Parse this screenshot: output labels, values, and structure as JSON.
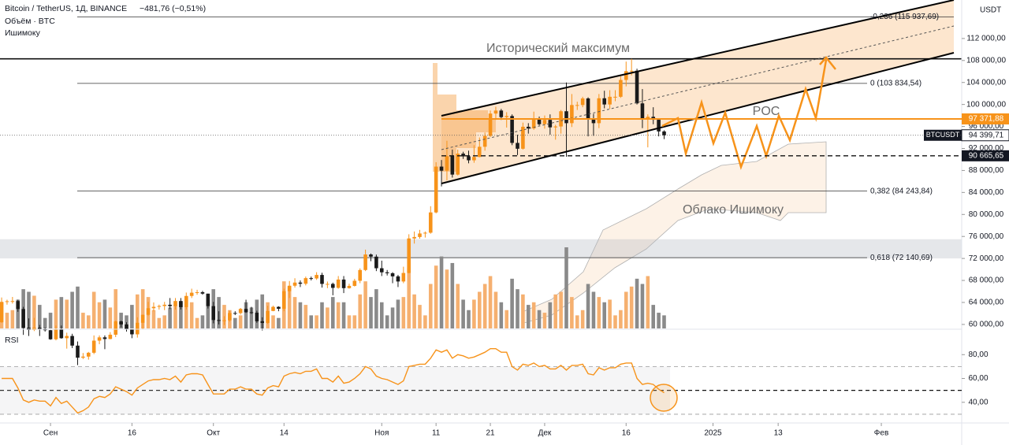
{
  "header": {
    "symbol": "Bitcoin / TetherUS, 1Д, BINANCE",
    "change": "−481,76 (−0,51%)",
    "volume": "Объём · BTC",
    "ichimoku": "Ишимоку"
  },
  "chart_data": {
    "type": "candlestick",
    "currency": "USDT",
    "up_color": "#f7931a",
    "down_color": "#1a1a1a",
    "volume_up_color": "#f5b070",
    "volume_down_color": "#8a8a8a",
    "xlim": [
      -0.3,
      176.8
    ],
    "xticks": [
      {
        "value": 9,
        "label": "Сен"
      },
      {
        "value": 24,
        "label": "16"
      },
      {
        "value": 39,
        "label": "Окт"
      },
      {
        "value": 52,
        "label": "14"
      },
      {
        "value": 70,
        "label": "Ноя"
      },
      {
        "value": 80,
        "label": "11"
      },
      {
        "value": 90,
        "label": "21"
      },
      {
        "value": 100,
        "label": "Дек"
      },
      {
        "value": 115,
        "label": "16"
      },
      {
        "value": 131,
        "label": "2025"
      },
      {
        "value": 143,
        "label": "13"
      },
      {
        "value": 162,
        "label": "Фев"
      }
    ],
    "ylim": [
      59200,
      119000
    ],
    "yticks": [
      {
        "value": 60000,
        "label": "60 000,00"
      },
      {
        "value": 64000,
        "label": "64 000,00"
      },
      {
        "value": 68000,
        "label": "68 000,00"
      },
      {
        "value": 72000,
        "label": "72 000,00"
      },
      {
        "value": 76000,
        "label": "76 000,00"
      },
      {
        "value": 80000,
        "label": "80 000,00"
      },
      {
        "value": 84000,
        "label": "84 000,00"
      },
      {
        "value": 88000,
        "label": "88 000,00"
      },
      {
        "value": 92000,
        "label": "92 000,00"
      },
      {
        "value": 96000,
        "label": "96 000,00"
      },
      {
        "value": 100000,
        "label": "100 000,00"
      },
      {
        "value": 104000,
        "label": "104 000,00"
      },
      {
        "value": 108000,
        "label": "108 000,00"
      },
      {
        "value": 112000,
        "label": "112 000,00"
      }
    ],
    "x": [
      0,
      1,
      2,
      3,
      4,
      5,
      6,
      7,
      8,
      9,
      10,
      11,
      12,
      13,
      14,
      15,
      16,
      17,
      18,
      19,
      20,
      21,
      22,
      23,
      24,
      25,
      26,
      27,
      28,
      29,
      30,
      31,
      32,
      33,
      34,
      35,
      36,
      37,
      38,
      39,
      40,
      41,
      42,
      43,
      44,
      45,
      46,
      47,
      48,
      49,
      50,
      51,
      52,
      53,
      54,
      55,
      56,
      57,
      58,
      59,
      60,
      61,
      62,
      63,
      64,
      65,
      66,
      67,
      68,
      69,
      70,
      71,
      72,
      73,
      74,
      75,
      76,
      77,
      78,
      79,
      80,
      81,
      82,
      83,
      84,
      85,
      86,
      87,
      88,
      89,
      90,
      91,
      92,
      93,
      94,
      95,
      96,
      97,
      98,
      99,
      100,
      101,
      102,
      103,
      104,
      105,
      106,
      107,
      108,
      109,
      110,
      111,
      112,
      113,
      114,
      115,
      116,
      117,
      118,
      119,
      120,
      121,
      122
    ],
    "open": [
      60400,
      64100,
      64220,
      64250,
      62800,
      59400,
      59000,
      59400,
      59100,
      58950,
      57300,
      59100,
      57500,
      57900,
      56150,
      53950,
      54150,
      54850,
      57050,
      57650,
      57350,
      58130,
      60550,
      60000,
      59150,
      58200,
      60300,
      61750,
      62950,
      63200,
      63350,
      63580,
      63330,
      64260,
      63150,
      65180,
      65770,
      65860,
      65600,
      63330,
      60800,
      60650,
      60750,
      62080,
      62060,
      62820,
      62220,
      62130,
      60580,
      60270,
      62450,
      63200,
      62850,
      66050,
      67040,
      67610,
      67400,
      68420,
      68360,
      69000,
      67370,
      67370,
      66650,
      68160,
      66600,
      67010,
      67940,
      69900,
      72720,
      72330,
      70220,
      69480,
      69310,
      68740,
      67810,
      69360,
      75640,
      75900,
      76540,
      76680,
      80370,
      88700,
      87960,
      90600,
      87250,
      91060,
      90560,
      89850,
      90460,
      92310,
      94290,
      98350,
      98900,
      97700,
      97900,
      93010,
      91950,
      95950,
      95640,
      97460,
      96410,
      97200,
      95840,
      96000,
      98770,
      96600,
      99900,
      99900,
      101100,
      97360,
      96600,
      101130,
      100000,
      101400,
      101400,
      104460,
      106060,
      106140,
      100200,
      97460,
      97760,
      97220,
      95100
    ],
    "high": [
      64900,
      64500,
      65000,
      64500,
      63200,
      61100,
      61200,
      59900,
      59400,
      59000,
      59800,
      59800,
      58500,
      58300,
      56900,
      54800,
      55000,
      58000,
      58000,
      58000,
      58600,
      60700,
      60700,
      60400,
      59200,
      61300,
      61800,
      64100,
      64000,
      63600,
      64100,
      64800,
      64800,
      64800,
      65800,
      66500,
      66300,
      66100,
      65600,
      64100,
      62400,
      61500,
      62500,
      62400,
      63000,
      64500,
      63200,
      62500,
      61300,
      63400,
      63400,
      63300,
      66500,
      67900,
      68400,
      68000,
      68700,
      68700,
      69500,
      69400,
      67800,
      67600,
      68800,
      68800,
      67400,
      68300,
      70200,
      73600,
      72900,
      72700,
      71600,
      69900,
      69500,
      69000,
      70500,
      76400,
      76900,
      77200,
      76900,
      81500,
      89500,
      89900,
      93400,
      91800,
      91800,
      91400,
      91600,
      92600,
      94000,
      94900,
      98900,
      99600,
      99200,
      98600,
      98200,
      94500,
      96700,
      96600,
      98700,
      97800,
      98000,
      98200,
      96300,
      99000,
      104000,
      101900,
      100500,
      101400,
      101300,
      98300,
      101900,
      102500,
      102600,
      102600,
      105100,
      107800,
      108300,
      106500,
      102800,
      98200,
      99500,
      97300,
      95300
    ],
    "low": [
      60300,
      63600,
      63800,
      62300,
      58100,
      57900,
      58800,
      57900,
      58700,
      57200,
      57100,
      57400,
      55600,
      55700,
      52600,
      53700,
      53600,
      54600,
      56400,
      55500,
      57300,
      57700,
      59500,
      58700,
      57500,
      57600,
      59200,
      61600,
      62400,
      62700,
      62600,
      62800,
      62700,
      62700,
      62700,
      64800,
      65400,
      65400,
      62900,
      60200,
      60000,
      59900,
      60500,
      61700,
      61800,
      62100,
      61900,
      60300,
      58900,
      60100,
      62400,
      62400,
      62400,
      64800,
      66700,
      66800,
      67100,
      68000,
      68100,
      66700,
      66600,
      65300,
      66500,
      65700,
      66500,
      66900,
      67500,
      69700,
      71500,
      69700,
      68800,
      68900,
      67500,
      66800,
      67500,
      69300,
      74700,
      75600,
      75800,
      76500,
      80200,
      85100,
      86200,
      86700,
      87100,
      90100,
      89300,
      89400,
      90400,
      91600,
      94100,
      97200,
      97200,
      95800,
      92600,
      90800,
      91800,
      94700,
      95400,
      96200,
      95600,
      94500,
      93600,
      94700,
      90500,
      95900,
      99000,
      99500,
      94200,
      94300,
      95700,
      99300,
      99200,
      100600,
      101200,
      103300,
      105300,
      100000,
      95700,
      92200,
      96400,
      94200,
      93700
    ],
    "close": [
      64100,
      64220,
      64250,
      62800,
      59400,
      59000,
      59400,
      59100,
      58950,
      57300,
      59100,
      57500,
      57900,
      56150,
      53950,
      54150,
      54850,
      57050,
      57650,
      57350,
      58130,
      60550,
      60000,
      59150,
      58200,
      60300,
      61750,
      62950,
      63200,
      63350,
      63580,
      63330,
      64260,
      63150,
      65180,
      65770,
      65860,
      65600,
      63330,
      60800,
      60650,
      60750,
      62080,
      62060,
      62820,
      62220,
      62130,
      60580,
      60270,
      62450,
      63200,
      62850,
      66050,
      67040,
      67610,
      67400,
      68420,
      68360,
      69000,
      67370,
      67370,
      66650,
      68160,
      66600,
      67010,
      67940,
      69900,
      72720,
      72330,
      70220,
      69480,
      69310,
      68740,
      67810,
      69360,
      75640,
      75900,
      76540,
      76680,
      80370,
      88700,
      87960,
      90600,
      87250,
      91060,
      90560,
      89850,
      90460,
      92310,
      94290,
      98350,
      98900,
      97700,
      97900,
      93010,
      91950,
      95950,
      95640,
      97460,
      96410,
      97200,
      95840,
      96000,
      98770,
      96600,
      99900,
      99900,
      101100,
      97360,
      96600,
      101130,
      100000,
      101400,
      101400,
      104460,
      106060,
      106140,
      100200,
      97460,
      97760,
      97220,
      95100,
      94400
    ],
    "volume": [
      20,
      12,
      14,
      22,
      30,
      28,
      25,
      18,
      8,
      12,
      22,
      24,
      22,
      28,
      32,
      12,
      10,
      28,
      20,
      22,
      16,
      30,
      12,
      10,
      18,
      26,
      30,
      24,
      14,
      8,
      10,
      16,
      18,
      20,
      22,
      20,
      8,
      10,
      22,
      30,
      24,
      18,
      14,
      8,
      10,
      20,
      16,
      22,
      26,
      20,
      10,
      8,
      36,
      32,
      24,
      20,
      18,
      10,
      10,
      20,
      16,
      24,
      20,
      20,
      10,
      10,
      26,
      36,
      24,
      30,
      20,
      10,
      16,
      22,
      24,
      46,
      26,
      18,
      10,
      34,
      48,
      55,
      45,
      50,
      34,
      22,
      14,
      22,
      28,
      34,
      40,
      28,
      20,
      14,
      38,
      30,
      26,
      18,
      20,
      14,
      12,
      20,
      26,
      28,
      62,
      24,
      10,
      14,
      34,
      28,
      24,
      20,
      22,
      10,
      14,
      28,
      32,
      38,
      34,
      40,
      18,
      12,
      10
    ],
    "volume_lim": [
      0,
      62
    ],
    "levels": [
      {
        "value": 115937.69,
        "label": "-0,236 (115 937,69)"
      },
      {
        "value": 103834.54,
        "label": "0 (103 834,54)"
      },
      {
        "value": 84243.84,
        "label": "0,382 (84 243,84)"
      },
      {
        "value": 72140.69,
        "label": "0,618 (72 140,69)"
      }
    ],
    "ath": {
      "value": 108300,
      "label": "Исторический максимум"
    },
    "zone": [
      72000,
      75500
    ],
    "poc": {
      "name": "POC",
      "value": 97371.88,
      "label": "97 371,88",
      "color": "#f7931a"
    },
    "support": {
      "value": 90665.65,
      "label": "90 665,65"
    },
    "last": {
      "symbol": "BTCUSDT",
      "value": 94399.71,
      "label": "94 399,71"
    },
    "cloud_label": "Облако Ишимоку",
    "rsi": {
      "name": "RSI",
      "color": "#f7931a",
      "ylim": [
        24,
        100
      ],
      "yticks": [
        {
          "value": 40,
          "label": "40,00"
        },
        {
          "value": 60,
          "label": "60,00"
        },
        {
          "value": 80,
          "label": "80,00"
        }
      ],
      "levels": [
        30,
        50,
        70
      ],
      "values": [
        60,
        60,
        60,
        52,
        42,
        40,
        42,
        41,
        41,
        37,
        44,
        39,
        41,
        36,
        31,
        33,
        36,
        43,
        45,
        44,
        47,
        53,
        51,
        49,
        46,
        52,
        55,
        58,
        59,
        59,
        60,
        59,
        62,
        57,
        63,
        64,
        64,
        63,
        55,
        47,
        47,
        47,
        51,
        51,
        53,
        51,
        51,
        47,
        46,
        52,
        54,
        53,
        62,
        64,
        65,
        64,
        66,
        66,
        68,
        60,
        60,
        57,
        62,
        56,
        57,
        60,
        64,
        70,
        68,
        62,
        60,
        59,
        57,
        55,
        58,
        70,
        71,
        72,
        72,
        77,
        84,
        82,
        84,
        77,
        80,
        79,
        77,
        78,
        80,
        82,
        85,
        85,
        82,
        82,
        70,
        67,
        72,
        71,
        73,
        70,
        71,
        68,
        68,
        71,
        67,
        71,
        71,
        72,
        64,
        63,
        69,
        67,
        69,
        69,
        72,
        73,
        73,
        60,
        55,
        56,
        55,
        51,
        48
      ]
    }
  }
}
